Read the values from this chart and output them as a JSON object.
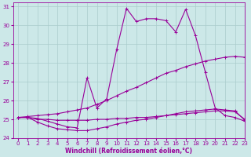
{
  "xlabel": "Windchill (Refroidissement éolien,°C)",
  "xlim": [
    -0.5,
    23
  ],
  "ylim": [
    24,
    31.2
  ],
  "yticks": [
    24,
    25,
    26,
    27,
    28,
    29,
    30,
    31
  ],
  "xticks": [
    0,
    1,
    2,
    3,
    4,
    5,
    6,
    7,
    8,
    9,
    10,
    11,
    12,
    13,
    14,
    15,
    16,
    17,
    18,
    19,
    20,
    21,
    22,
    23
  ],
  "bg_color": "#cce8e8",
  "line_color": "#990099",
  "grid_color": "#aacccc",
  "curves": [
    {
      "x": [
        0,
        1,
        2,
        3,
        4,
        5,
        6,
        7,
        8,
        9,
        10,
        11,
        12,
        13,
        14,
        15,
        16,
        17,
        18,
        19,
        20,
        21,
        22,
        23
      ],
      "y": [
        25.1,
        25.1,
        25.05,
        24.9,
        24.75,
        24.6,
        24.55,
        27.2,
        25.6,
        26.1,
        28.7,
        30.9,
        30.2,
        30.35,
        30.35,
        30.25,
        29.65,
        30.85,
        29.45,
        27.5,
        25.6,
        25.2,
        25.1,
        24.9
      ]
    },
    {
      "x": [
        0,
        1,
        2,
        3,
        4,
        5,
        6,
        7,
        8,
        9,
        10,
        11,
        12,
        13,
        14,
        15,
        16,
        17,
        18,
        19,
        20,
        21,
        22,
        23
      ],
      "y": [
        25.1,
        25.1,
        25.0,
        25.0,
        24.95,
        24.95,
        24.95,
        24.95,
        25.0,
        25.0,
        25.05,
        25.05,
        25.1,
        25.1,
        25.15,
        25.2,
        25.25,
        25.3,
        25.35,
        25.4,
        25.45,
        25.45,
        25.4,
        25.0
      ]
    },
    {
      "x": [
        0,
        1,
        2,
        3,
        4,
        5,
        6,
        7,
        8,
        9,
        10,
        11,
        12,
        13,
        14,
        15,
        16,
        17,
        18,
        19,
        20,
        21,
        22,
        23
      ],
      "y": [
        25.1,
        25.15,
        25.2,
        25.25,
        25.3,
        25.4,
        25.5,
        25.6,
        25.8,
        26.0,
        26.25,
        26.5,
        26.7,
        26.95,
        27.2,
        27.45,
        27.6,
        27.8,
        27.95,
        28.1,
        28.2,
        28.3,
        28.35,
        28.3
      ]
    },
    {
      "x": [
        0,
        1,
        2,
        3,
        4,
        5,
        6,
        7,
        8,
        9,
        10,
        11,
        12,
        13,
        14,
        15,
        16,
        17,
        18,
        19,
        20,
        21,
        22,
        23
      ],
      "y": [
        25.1,
        25.1,
        24.85,
        24.65,
        24.5,
        24.45,
        24.4,
        24.4,
        24.5,
        24.6,
        24.75,
        24.85,
        24.95,
        25.0,
        25.1,
        25.2,
        25.3,
        25.4,
        25.45,
        25.5,
        25.55,
        25.5,
        25.45,
        24.95
      ]
    }
  ]
}
